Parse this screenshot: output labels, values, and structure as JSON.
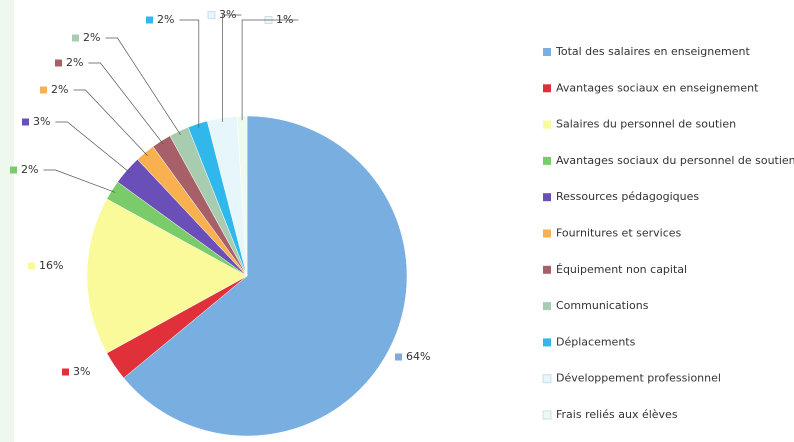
{
  "chart_data": {
    "type": "pie",
    "categories": [
      "Total des salaires en enseignement",
      "Avantages sociaux en enseignement",
      "Salaires du personnel de soutien",
      "Avantages sociaux du personnel de soutien",
      "Ressources pédagogiques",
      "Fournitures et services",
      "Équipement non capital",
      "Communications",
      "Déplacements",
      "Développement professionnel",
      "Frais reliés aux élèves"
    ],
    "values": [
      64,
      3,
      16,
      2,
      3,
      2,
      2,
      2,
      2,
      3,
      1
    ],
    "value_labels": [
      "64%",
      "3%",
      "16%",
      "2%",
      "3%",
      "2%",
      "2%",
      "2%",
      "2%",
      "3%",
      "1%"
    ],
    "colors": [
      "#78aee0",
      "#e0303a",
      "#fafa9a",
      "#7acc6a",
      "#6a4fb8",
      "#f8b050",
      "#a86068",
      "#a8ccb0",
      "#30b8ec",
      "#e6f6fa",
      "#eefaf0"
    ]
  }
}
